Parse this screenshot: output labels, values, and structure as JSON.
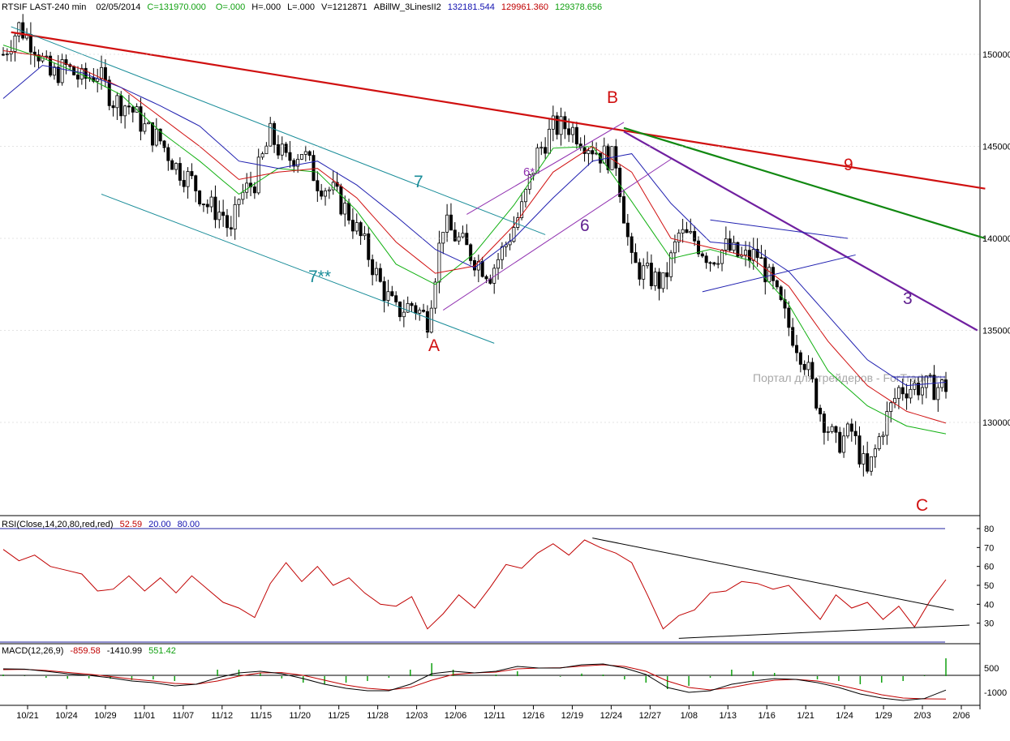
{
  "header": {
    "symbol": "RTSIF LAST-240 min",
    "date": "02/05/2014",
    "close": "C=131970.000",
    "open": "O=.000",
    "high": "H=.000",
    "low": "L=.000",
    "volume": "V=1212871",
    "indicator": "ABillW_3LinesII2",
    "val1": "132181.544",
    "val2": "129961.360",
    "val3": "129378.656",
    "colors": {
      "val1": "#1010b0",
      "val2": "#c00000",
      "val3": "#10a010",
      "close": "#10a010",
      "o": "#10a010"
    }
  },
  "watermark": "Портал для трейдеров - ForTrader.ru",
  "rsi_header": {
    "label": "RSI(Close,14,20,80,red,red)",
    "value": "52.59",
    "lower": "20.00",
    "upper": "80.00"
  },
  "macd_header": {
    "label": "MACD(12,26,9)",
    "macd": "-859.58",
    "signal": "-1410.99",
    "hist": "551.42"
  },
  "x_ticks": [
    "10/21",
    "10/24",
    "10/29",
    "11/01",
    "11/07",
    "11/12",
    "11/15",
    "11/20",
    "11/25",
    "11/28",
    "12/03",
    "12/06",
    "12/11",
    "12/16",
    "12/19",
    "12/24",
    "12/27",
    "1/08",
    "1/13",
    "1/16",
    "1/21",
    "1/24",
    "1/29",
    "2/03",
    "2/06"
  ],
  "price_ticks": [
    "130000",
    "135000",
    "140000",
    "145000",
    "150000"
  ],
  "rsi_ticks": [
    "80",
    "70",
    "60",
    "50",
    "40",
    "30"
  ],
  "macd_ticks": [
    "500",
    "-1000"
  ],
  "annotations": [
    {
      "text": "7",
      "color": "#188c98"
    },
    {
      "text": "7**",
      "color": "#188c98"
    },
    {
      "text": "6*",
      "color": "#9030b0"
    },
    {
      "text": "6",
      "color": "#602090"
    },
    {
      "text": "A",
      "color": "#d01010"
    },
    {
      "text": "B",
      "color": "#d01010"
    },
    {
      "text": "C",
      "color": "#d01010"
    },
    {
      "text": "9",
      "color": "#d01010"
    },
    {
      "text": "3",
      "color": "#602090"
    }
  ],
  "chart_data": {
    "type": "line",
    "price_ylim": [
      126000,
      152000
    ],
    "series": [
      {
        "name": "RTSIF LAST-240 min",
        "color": "#000000",
        "x": [
          0,
          4,
          8,
          12,
          16,
          20,
          24,
          28,
          32,
          36,
          40,
          44,
          48,
          52,
          56,
          58,
          60,
          64,
          68,
          72,
          76,
          80,
          84,
          88,
          92,
          96,
          100,
          104,
          108,
          112,
          116,
          120,
          124,
          128,
          132,
          136,
          140,
          144,
          148,
          152,
          156,
          160,
          164,
          168,
          172,
          176,
          180,
          184,
          188,
          192,
          196,
          200,
          204,
          208,
          212,
          216,
          220,
          224,
          228,
          232,
          236,
          240
        ],
        "y": [
          150000,
          151500,
          150500,
          148800,
          149300,
          148600,
          149000,
          147500,
          147200,
          146000,
          145300,
          143900,
          143100,
          141800,
          141300,
          140100,
          142200,
          143100,
          145600,
          144200,
          144800,
          143100,
          142500,
          141300,
          139600,
          137500,
          136000,
          136400,
          135600,
          140800,
          139900,
          138900,
          138100,
          139700,
          141600,
          144600,
          146000,
          146100,
          145300,
          144600,
          144200,
          138600,
          138000,
          137500,
          140200,
          139900,
          138900,
          139500,
          138900,
          139100,
          137300,
          135200,
          133400,
          130600,
          128800,
          129500,
          127100,
          129800,
          131800,
          131970,
          131900,
          131970
        ]
      },
      {
        "name": "MA fast",
        "color": "#10b010",
        "x": [
          0,
          10,
          20,
          30,
          40,
          50,
          60,
          70,
          80,
          90,
          100,
          110,
          120,
          130,
          140,
          150,
          160,
          170,
          180,
          190,
          200,
          210,
          220,
          230,
          240
        ],
        "y": [
          150500,
          149800,
          148900,
          147800,
          145800,
          144200,
          142400,
          143800,
          143600,
          141500,
          138600,
          137500,
          139200,
          141800,
          144900,
          145000,
          142000,
          138900,
          139400,
          138800,
          136400,
          132800,
          130900,
          129800,
          129380
        ]
      },
      {
        "name": "MA mid",
        "color": "#d01010",
        "x": [
          0,
          10,
          20,
          30,
          40,
          50,
          60,
          70,
          80,
          90,
          100,
          110,
          120,
          130,
          140,
          150,
          160,
          170,
          180,
          190,
          200,
          210,
          220,
          230,
          240
        ],
        "y": [
          150200,
          149900,
          149200,
          148200,
          146600,
          145000,
          143200,
          143600,
          143800,
          142200,
          139800,
          138100,
          138500,
          140700,
          143600,
          145000,
          143600,
          140000,
          139500,
          139000,
          137400,
          134400,
          132000,
          130600,
          129960
        ]
      },
      {
        "name": "MA slow",
        "color": "#2020b0",
        "x": [
          0,
          10,
          20,
          30,
          40,
          50,
          60,
          70,
          80,
          90,
          100,
          110,
          120,
          130,
          140,
          150,
          160,
          170,
          180,
          190,
          200,
          210,
          220,
          230,
          240
        ],
        "y": [
          147600,
          149400,
          149000,
          148200,
          147200,
          146100,
          144200,
          143800,
          144200,
          142900,
          141200,
          139400,
          138400,
          140000,
          142200,
          144200,
          144600,
          141900,
          139800,
          139600,
          138200,
          135800,
          133400,
          132000,
          132180
        ]
      }
    ],
    "trend_lines": [
      {
        "name": "9",
        "color": "#d01010",
        "x": [
          2,
          250
        ],
        "y": [
          151200,
          142700
        ]
      },
      {
        "name": "green",
        "color": "#118811",
        "x": [
          158,
          250
        ],
        "y": [
          146000,
          140000
        ]
      },
      {
        "name": "3",
        "color": "#7020a0",
        "x": [
          158,
          248
        ],
        "y": [
          145800,
          135000
        ]
      },
      {
        "name": "7",
        "color": "#188c98",
        "x": [
          2,
          138
        ],
        "y": [
          151500,
          140200
        ]
      },
      {
        "name": "7**",
        "color": "#188c98",
        "x": [
          25,
          125
        ],
        "y": [
          142400,
          134300
        ]
      },
      {
        "name": "6*",
        "color": "#9030b0",
        "x": [
          118,
          158
        ],
        "y": [
          141300,
          146300
        ]
      },
      {
        "name": "6",
        "color": "#9030b0",
        "x": [
          112,
          170
        ],
        "y": [
          136100,
          144300
        ]
      },
      {
        "name": "tri-upper",
        "color": "#2020b0",
        "x": [
          180,
          215
        ],
        "y": [
          141000,
          140000
        ]
      },
      {
        "name": "tri-lower",
        "color": "#2020b0",
        "x": [
          178,
          217
        ],
        "y": [
          137100,
          139100
        ]
      }
    ],
    "rsi": {
      "ylim": [
        20,
        85
      ],
      "levels": [
        80,
        20
      ],
      "color": "#c00000",
      "values": [
        69,
        63,
        66,
        60,
        58,
        56,
        47,
        48,
        55,
        47,
        54,
        46,
        55,
        48,
        41,
        38,
        33,
        51,
        62,
        52,
        60,
        50,
        54,
        46,
        40,
        39,
        44,
        27,
        35,
        45,
        38,
        49,
        61,
        59,
        67,
        72,
        66,
        74,
        70,
        67,
        62,
        45,
        27,
        34,
        37,
        46,
        47,
        52,
        51,
        48,
        50,
        41,
        32,
        45,
        38,
        41,
        32,
        39,
        28,
        42,
        53
      ],
      "resistance": {
        "x": [
          150,
          242
        ],
        "y": [
          75,
          37
        ]
      },
      "support": {
        "x": [
          172,
          246
        ],
        "y": [
          22,
          29
        ]
      }
    },
    "macd": {
      "ylim": [
        -1600,
        900
      ],
      "color_macd": "#000000",
      "color_signal": "#c00000",
      "color_hist": "#10a010",
      "macd": [
        450,
        430,
        300,
        150,
        50,
        -100,
        -300,
        -400,
        -600,
        -500,
        -100,
        200,
        300,
        150,
        -150,
        -500,
        -750,
        -900,
        -900,
        -500,
        150,
        300,
        200,
        300,
        600,
        500,
        500,
        700,
        750,
        500,
        100,
        -700,
        -1000,
        -900,
        -500,
        -300,
        -150,
        -200,
        -400,
        -700,
        -1100,
        -1350,
        -1500,
        -1380,
        -860
      ],
      "signal": [
        400,
        420,
        350,
        230,
        120,
        -20,
        -180,
        -300,
        -450,
        -500,
        -300,
        0,
        200,
        220,
        50,
        -250,
        -550,
        -750,
        -850,
        -700,
        -250,
        100,
        200,
        250,
        450,
        500,
        520,
        620,
        700,
        600,
        300,
        -300,
        -700,
        -850,
        -700,
        -450,
        -250,
        -200,
        -300,
        -550,
        -850,
        -1150,
        -1350,
        -1400,
        -1410
      ]
    }
  }
}
